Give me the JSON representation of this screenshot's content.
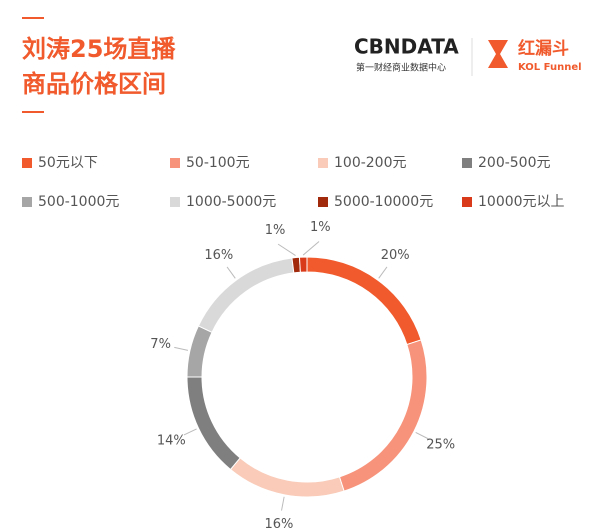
{
  "logos": {
    "cbndata": "CBNDATA",
    "cbndata_sub": "第一财经商业数据中心",
    "funnel": "红漏斗",
    "funnel_sub": "KOL Funnel"
  },
  "chart_data": {
    "type": "donut",
    "title_lines": [
      "刘涛25场直播",
      "商品价格区间"
    ],
    "categories": [
      "50元以下",
      "50-100元",
      "100-200元",
      "200-500元",
      "500-1000元",
      "1000-5000元",
      "5000-10000元",
      "10000元以上"
    ],
    "values": [
      20,
      25,
      16,
      14,
      7,
      16,
      1,
      1
    ],
    "value_labels": [
      "20%",
      "25%",
      "16%",
      "14%",
      "7%",
      "16%",
      "1%",
      "1%"
    ],
    "colors": [
      "#f05a2c",
      "#f7937a",
      "#f9cbb8",
      "#7f7f7f",
      "#a6a6a6",
      "#d9d9d9",
      "#a12a0d",
      "#d93a1a"
    ]
  }
}
